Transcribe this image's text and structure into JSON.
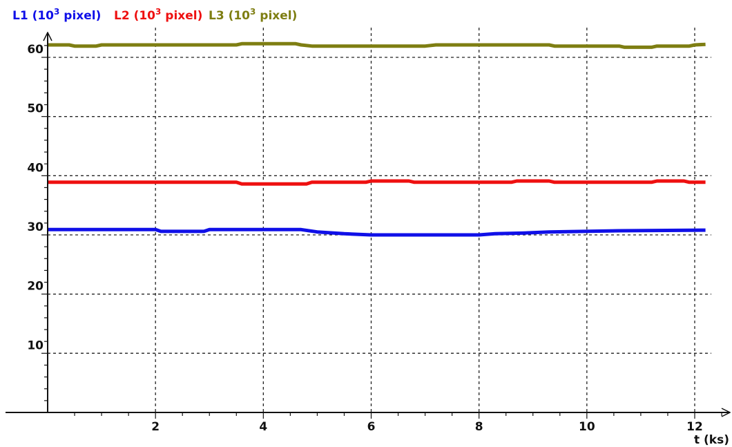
{
  "chart_data": {
    "type": "line",
    "xlabel": "t (ks)",
    "ylabel": "",
    "xlim": [
      0,
      12.6
    ],
    "ylim": [
      0,
      64
    ],
    "x_ticks": [
      2,
      4,
      6,
      8,
      10,
      12
    ],
    "y_ticks": [
      10,
      20,
      30,
      40,
      50,
      60
    ],
    "grid": true,
    "legend_position": "top-left",
    "series": [
      {
        "name": "L1 (10",
        "sup": "3",
        "unit": " pixel)",
        "color": "#1010e8",
        "points": [
          [
            0,
            30.9
          ],
          [
            2,
            30.9
          ],
          [
            2.1,
            30.6
          ],
          [
            2.9,
            30.6
          ],
          [
            3.0,
            30.9
          ],
          [
            4.7,
            30.9
          ],
          [
            5.0,
            30.5
          ],
          [
            5.5,
            30.2
          ],
          [
            6.0,
            30.0
          ],
          [
            7.0,
            30.0
          ],
          [
            8.0,
            30.0
          ],
          [
            8.3,
            30.2
          ],
          [
            8.8,
            30.3
          ],
          [
            9.3,
            30.5
          ],
          [
            10.6,
            30.7
          ],
          [
            12.2,
            30.8
          ]
        ]
      },
      {
        "name": "L2 (10",
        "sup": "3",
        "unit": " pixel)",
        "color": "#ee1010",
        "points": [
          [
            0,
            38.9
          ],
          [
            3.5,
            38.9
          ],
          [
            3.6,
            38.6
          ],
          [
            4.8,
            38.6
          ],
          [
            4.9,
            38.9
          ],
          [
            5.9,
            38.9
          ],
          [
            6.0,
            39.1
          ],
          [
            6.7,
            39.1
          ],
          [
            6.8,
            38.9
          ],
          [
            8.6,
            38.9
          ],
          [
            8.7,
            39.1
          ],
          [
            9.3,
            39.1
          ],
          [
            9.4,
            38.9
          ],
          [
            11.2,
            38.9
          ],
          [
            11.3,
            39.1
          ],
          [
            11.8,
            39.1
          ],
          [
            11.9,
            38.9
          ],
          [
            12.2,
            38.9
          ]
        ]
      },
      {
        "name": "L3 (10",
        "sup": "3",
        "unit": " pixel)",
        "color": "#7e7e12",
        "points": [
          [
            0,
            62.1
          ],
          [
            0.4,
            62.1
          ],
          [
            0.5,
            61.9
          ],
          [
            0.9,
            61.9
          ],
          [
            1.0,
            62.1
          ],
          [
            3.5,
            62.1
          ],
          [
            3.6,
            62.3
          ],
          [
            4.6,
            62.3
          ],
          [
            4.7,
            62.1
          ],
          [
            4.9,
            61.9
          ],
          [
            7.0,
            61.9
          ],
          [
            7.2,
            62.1
          ],
          [
            9.3,
            62.1
          ],
          [
            9.4,
            61.9
          ],
          [
            10.6,
            61.9
          ],
          [
            10.7,
            61.7
          ],
          [
            11.2,
            61.7
          ],
          [
            11.3,
            61.9
          ],
          [
            11.9,
            61.9
          ],
          [
            12.0,
            62.1
          ],
          [
            12.2,
            62.2
          ]
        ]
      }
    ]
  }
}
